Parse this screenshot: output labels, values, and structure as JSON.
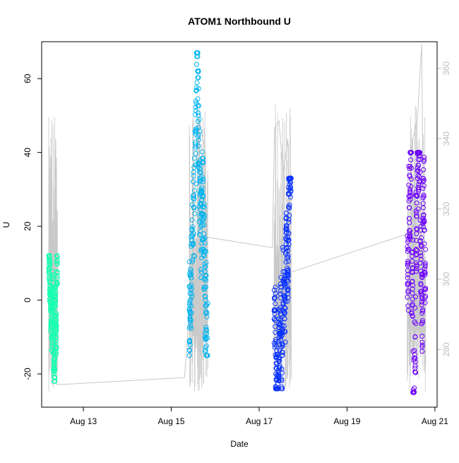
{
  "chart_data": {
    "type": "scatter",
    "title": "ATOM1 Northbound U",
    "xlabel": "Date",
    "ylabel": "U",
    "x_ticks": [
      "Aug 13",
      "Aug 15",
      "Aug 17",
      "Aug 19",
      "Aug 21"
    ],
    "x_tick_days": [
      13,
      15,
      17,
      19,
      21
    ],
    "xlim": [
      12.05,
      21.05
    ],
    "ylim": [
      -29,
      70
    ],
    "y_ticks": [
      -20,
      0,
      20,
      40,
      60
    ],
    "y2_ticks": [
      280,
      300,
      320,
      340,
      360
    ],
    "y2lim": [
      263.6,
      367.6
    ],
    "grid": false,
    "legend": "none",
    "point_series": [
      {
        "color": "#1affb3",
        "x": [
          12.22,
          12.23,
          12.25,
          12.27,
          12.29,
          12.31,
          12.33,
          12.35,
          12.37,
          12.39
        ],
        "y": [
          11,
          5,
          -3,
          -8,
          2,
          -13,
          -20,
          -2,
          -9,
          10
        ],
        "x_range": [
          12.21,
          12.41
        ],
        "y_range": [
          -22,
          12
        ]
      },
      {
        "color": "#00b4f0",
        "x": [
          15.42,
          15.45,
          15.48,
          15.52,
          15.55,
          15.58,
          15.62,
          15.65,
          15.68,
          15.72,
          15.75,
          15.78,
          15.82
        ],
        "y": [
          -3,
          6,
          19,
          25,
          45,
          66,
          50,
          32,
          20,
          28,
          12,
          0,
          -15
        ],
        "x_range": [
          15.41,
          15.83
        ],
        "y_range": [
          -15,
          67
        ]
      },
      {
        "color": "#0a32ff",
        "x": [
          17.35,
          17.38,
          17.42,
          17.45,
          17.48,
          17.52,
          17.55,
          17.58,
          17.62,
          17.65,
          17.68,
          17.72
        ],
        "y": [
          -5,
          -20,
          -24,
          -12,
          -3,
          -15,
          5,
          -2,
          14,
          8,
          25,
          33
        ],
        "x_range": [
          17.34,
          17.73
        ],
        "y_range": [
          -24,
          33
        ]
      },
      {
        "color": "#6c00ff",
        "x": [
          20.38,
          20.42,
          20.45,
          20.48,
          20.52,
          20.55,
          20.58,
          20.62,
          20.65,
          20.68,
          20.72,
          20.75,
          20.78
        ],
        "y": [
          8,
          25,
          38,
          5,
          -25,
          -10,
          18,
          35,
          40,
          12,
          -3,
          28,
          10
        ],
        "x_range": [
          20.37,
          20.79
        ],
        "y_range": [
          -25,
          40
        ]
      }
    ],
    "line_series": {
      "color": "#c8c8c8",
      "axis": "right",
      "x": [
        12.3,
        12.33,
        12.37,
        12.4,
        15.3,
        15.35,
        15.45,
        15.55,
        15.65,
        15.75,
        15.8,
        17.3,
        17.35,
        17.45,
        17.55,
        17.65,
        17.72,
        20.4,
        20.5,
        20.6,
        20.7,
        20.75
      ],
      "y": [
        270,
        303,
        340,
        270,
        272,
        280,
        300,
        330,
        345,
        338,
        312,
        309,
        343,
        345,
        330,
        340,
        302,
        313,
        340,
        345,
        367,
        300
      ]
    }
  }
}
